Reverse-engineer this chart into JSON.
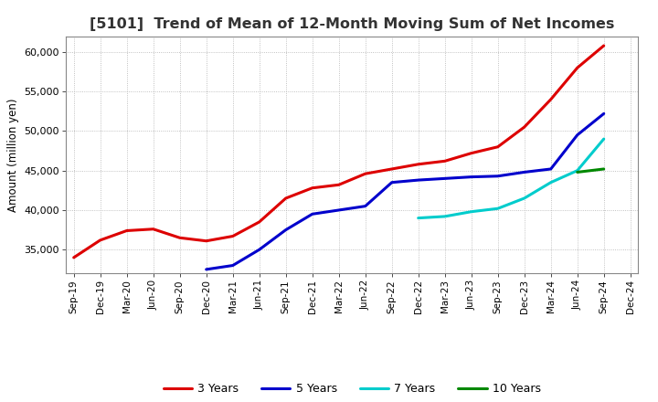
{
  "title": "[5101]  Trend of Mean of 12-Month Moving Sum of Net Incomes",
  "ylabel": "Amount (million yen)",
  "background_color": "#ffffff",
  "grid_color": "#b0b0b0",
  "title_fontsize": 11.5,
  "series": {
    "3 Years": {
      "color": "#dd0000",
      "x": [
        "Sep-19",
        "Dec-19",
        "Mar-20",
        "Jun-20",
        "Sep-20",
        "Dec-20",
        "Mar-21",
        "Jun-21",
        "Sep-21",
        "Dec-21",
        "Mar-22",
        "Jun-22",
        "Sep-22",
        "Dec-22",
        "Mar-23",
        "Jun-23",
        "Sep-23",
        "Dec-23",
        "Mar-24",
        "Jun-24",
        "Sep-24"
      ],
      "y": [
        34000,
        36200,
        37400,
        37600,
        36500,
        36100,
        36700,
        38500,
        41500,
        42800,
        43200,
        44600,
        45200,
        45800,
        46200,
        47200,
        48000,
        50500,
        54000,
        58000,
        60800
      ]
    },
    "5 Years": {
      "color": "#0000cc",
      "x": [
        "Dec-20",
        "Mar-21",
        "Jun-21",
        "Sep-21",
        "Dec-21",
        "Mar-22",
        "Jun-22",
        "Sep-22",
        "Dec-22",
        "Mar-23",
        "Jun-23",
        "Sep-23",
        "Dec-23",
        "Mar-24",
        "Jun-24",
        "Sep-24"
      ],
      "y": [
        32500,
        33000,
        35000,
        37500,
        39500,
        40000,
        40500,
        43500,
        43800,
        44000,
        44200,
        44300,
        44800,
        45200,
        49500,
        52200
      ]
    },
    "7 Years": {
      "color": "#00cccc",
      "x": [
        "Dec-22",
        "Mar-23",
        "Jun-23",
        "Sep-23",
        "Dec-23",
        "Mar-24",
        "Jun-24",
        "Sep-24"
      ],
      "y": [
        39000,
        39200,
        39800,
        40200,
        41500,
        43500,
        45000,
        49000
      ]
    },
    "10 Years": {
      "color": "#008800",
      "x": [
        "Jun-24",
        "Sep-24"
      ],
      "y": [
        44800,
        45200
      ]
    }
  },
  "x_tick_labels": [
    "Sep-19",
    "Dec-19",
    "Mar-20",
    "Jun-20",
    "Sep-20",
    "Dec-20",
    "Mar-21",
    "Jun-21",
    "Sep-21",
    "Dec-21",
    "Mar-22",
    "Jun-22",
    "Sep-22",
    "Dec-22",
    "Mar-23",
    "Jun-23",
    "Sep-23",
    "Dec-23",
    "Mar-24",
    "Jun-24",
    "Sep-24",
    "Dec-24"
  ],
  "ylim": [
    32000,
    62000
  ],
  "yticks": [
    35000,
    40000,
    45000,
    50000,
    55000,
    60000
  ]
}
